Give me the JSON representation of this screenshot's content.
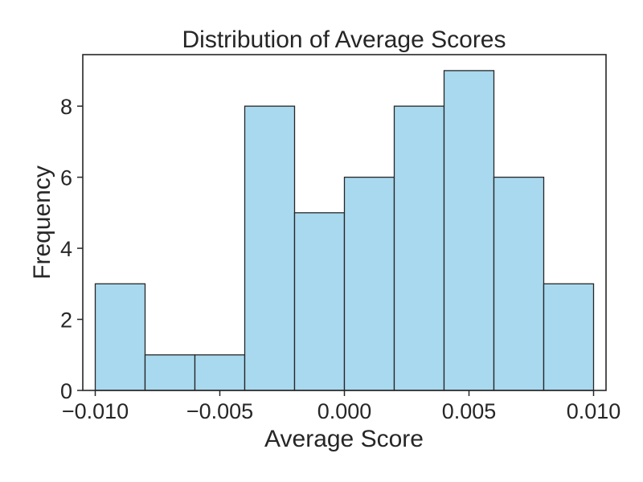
{
  "chart_data": {
    "type": "bar",
    "title": "Distribution of Average Scores",
    "xlabel": "Average Score",
    "ylabel": "Frequency",
    "bin_edges": [
      -0.01,
      -0.008,
      -0.006,
      -0.004,
      -0.002,
      0.0,
      0.002,
      0.004,
      0.006,
      0.008,
      0.01
    ],
    "values": [
      3,
      1,
      1,
      8,
      5,
      6,
      8,
      9,
      6,
      3
    ],
    "xlim": [
      -0.0105,
      0.0105
    ],
    "ylim": [
      0,
      9.45
    ],
    "xticks": [
      -0.01,
      -0.005,
      0.0,
      0.005,
      0.01
    ],
    "xtick_labels": [
      "−0.010",
      "−0.005",
      "0.000",
      "0.005",
      "0.010"
    ],
    "yticks": [
      0,
      2,
      4,
      6,
      8
    ],
    "ytick_labels": [
      "0",
      "2",
      "4",
      "6",
      "8"
    ],
    "grid": false,
    "colors": {
      "bar_fill": "#a9d9ee",
      "bar_edge": "#262626",
      "axes": "#262626",
      "text": "#262626"
    }
  }
}
